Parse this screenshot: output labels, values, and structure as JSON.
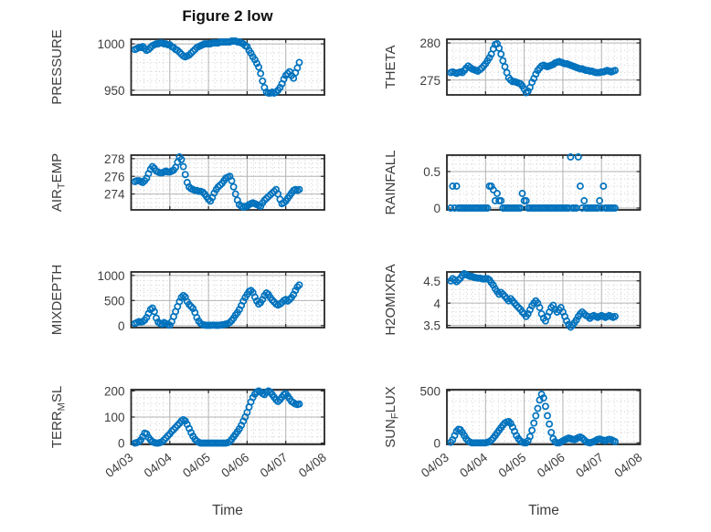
{
  "figure": {
    "title": "Figure 2 low",
    "xlabel": "Time",
    "background": "#ffffff",
    "marker_color": "#0072BD",
    "axis_color": "#262626",
    "text_color": "#3d3d3d",
    "grid_color": "#b3b3b3",
    "minor_grid_color": "#c9c9c9"
  },
  "x_axis": {
    "label": "Time",
    "ticks": [
      "04/03",
      "04/04",
      "04/05",
      "04/06",
      "04/07",
      "04/08"
    ],
    "range_days": [
      0,
      5
    ]
  },
  "chart_data": [
    {
      "name": "PRESSURE",
      "type": "scatter",
      "row": 0,
      "col": 0,
      "ylabel_parts": [
        {
          "text": "PRESSURE",
          "sub": false
        }
      ],
      "ylim": [
        945,
        1005
      ],
      "yticks": [
        {
          "v": 950,
          "label": "950"
        },
        {
          "v": 1000,
          "label": "1000"
        }
      ],
      "y_minor_step": 10,
      "x_start_day": 0.1,
      "x_step_day": 0.05,
      "values": [
        994,
        995,
        996,
        996,
        997,
        995,
        993,
        994,
        996,
        998,
        999,
        1000,
        1000,
        1001,
        1001,
        1000,
        1000,
        999,
        999,
        997,
        996,
        994,
        993,
        991,
        989,
        987,
        986,
        987,
        988,
        990,
        992,
        994,
        996,
        997,
        998,
        999,
        1000,
        1000,
        1000,
        1000,
        1001,
        1001,
        1001,
        1001,
        1002,
        1002,
        1002,
        1002,
        1002,
        1002,
        1003,
        1003,
        1003,
        1002,
        1002,
        1001,
        1000,
        998,
        997,
        993,
        990,
        986,
        983,
        979,
        975,
        968,
        960,
        953,
        948,
        947,
        947,
        948,
        947,
        948,
        950,
        953,
        957,
        962,
        966,
        968,
        970,
        966,
        963,
        969,
        974,
        980
      ]
    },
    {
      "name": "THETA",
      "type": "scatter",
      "row": 0,
      "col": 1,
      "ylabel_parts": [
        {
          "text": "THETA",
          "sub": false
        }
      ],
      "ylim": [
        273,
        280.5
      ],
      "yticks": [
        {
          "v": 275,
          "label": "275"
        },
        {
          "v": 280,
          "label": "280"
        }
      ],
      "y_minor_step": 1,
      "x_start_day": 0.1,
      "x_step_day": 0.05,
      "values": [
        276.0,
        276.1,
        276.0,
        275.9,
        276.0,
        276.1,
        276.0,
        276.3,
        276.6,
        276.9,
        276.7,
        276.5,
        276.4,
        276.3,
        276.2,
        276.4,
        276.6,
        276.9,
        277.2,
        277.6,
        278.0,
        278.5,
        279.2,
        279.8,
        279.9,
        279.3,
        278.5,
        277.6,
        276.8,
        276.0,
        275.3,
        275.0,
        274.8,
        274.8,
        274.7,
        274.6,
        274.5,
        274.2,
        273.8,
        273.3,
        273.5,
        274.0,
        274.7,
        275.2,
        275.8,
        276.3,
        276.6,
        276.9,
        277.0,
        276.9,
        276.8,
        276.9,
        277.0,
        277.1,
        277.3,
        277.4,
        277.5,
        277.4,
        277.3,
        277.2,
        277.2,
        277.1,
        277.0,
        276.9,
        276.8,
        276.7,
        276.6,
        276.5,
        276.5,
        276.4,
        276.3,
        276.3,
        276.2,
        276.2,
        276.1,
        276.0,
        276.0,
        276.0,
        276.1,
        276.1,
        276.2,
        276.3,
        276.2,
        276.1,
        276.2,
        276.3
      ]
    },
    {
      "name": "AIR_TEMP",
      "type": "scatter",
      "row": 1,
      "col": 0,
      "ylabel_parts": [
        {
          "text": "AIR",
          "sub": false
        },
        {
          "text": "T",
          "sub": true
        },
        {
          "text": "EMP",
          "sub": false
        }
      ],
      "ylim": [
        272.2,
        278.4
      ],
      "yticks": [
        {
          "v": 274,
          "label": "274"
        },
        {
          "v": 276,
          "label": "276"
        },
        {
          "v": 278,
          "label": "278"
        }
      ],
      "y_minor_step": 0.5,
      "x_start_day": 0.1,
      "x_step_day": 0.05,
      "values": [
        275.4,
        275.5,
        275.5,
        275.4,
        275.3,
        275.5,
        275.8,
        276.3,
        276.8,
        277.1,
        276.9,
        276.6,
        276.5,
        276.4,
        276.4,
        276.5,
        276.6,
        276.5,
        276.5,
        276.6,
        276.7,
        277.0,
        277.6,
        278.2,
        277.9,
        277.1,
        276.2,
        275.3,
        274.8,
        274.6,
        274.5,
        274.4,
        274.4,
        274.3,
        274.3,
        274.2,
        274.0,
        273.7,
        273.4,
        273.2,
        273.6,
        274.1,
        274.5,
        274.8,
        275.0,
        275.2,
        275.5,
        275.8,
        275.9,
        276.0,
        275.5,
        274.8,
        274.0,
        273.3,
        272.8,
        272.6,
        272.5,
        272.6,
        272.6,
        272.8,
        272.9,
        273.0,
        272.9,
        272.8,
        272.7,
        272.6,
        273.0,
        273.3,
        273.5,
        273.7,
        273.9,
        274.1,
        274.3,
        274.5,
        274.0,
        273.4,
        272.9,
        273.0,
        273.2,
        273.5,
        273.8,
        274.1,
        274.4,
        274.5,
        274.4,
        274.5
      ]
    },
    {
      "name": "RAINFALL",
      "type": "scatter",
      "row": 1,
      "col": 1,
      "ylabel_parts": [
        {
          "text": "RAINFALL",
          "sub": false
        }
      ],
      "ylim": [
        -0.025,
        0.725
      ],
      "yticks": [
        {
          "v": 0,
          "label": "0"
        },
        {
          "v": 0.5,
          "label": "0.5"
        }
      ],
      "y_minor_step": 0.1,
      "x_start_day": 0.1,
      "x_step_day": 0.05,
      "values": [
        0,
        0.3,
        0,
        0.3,
        0,
        0,
        0,
        0,
        0,
        0,
        0,
        0,
        0,
        0,
        0,
        0,
        0,
        0,
        0,
        0,
        0.3,
        0.3,
        0.25,
        0.1,
        0.2,
        0.1,
        0.1,
        0,
        0,
        0,
        0,
        0,
        0,
        0,
        0,
        0,
        0,
        0.2,
        0.1,
        0.1,
        0,
        0,
        0,
        0,
        0,
        0,
        0,
        0,
        0,
        0,
        0,
        0,
        0,
        0,
        0,
        0,
        0,
        0,
        0,
        0,
        0,
        0,
        0.7,
        0,
        0,
        0,
        0.7,
        0.3,
        0,
        0.1,
        0,
        0,
        0,
        0,
        0,
        0,
        0,
        0.1,
        0,
        0.3,
        0,
        0,
        0,
        0,
        0,
        0
      ]
    },
    {
      "name": "MIXDEPTH",
      "type": "scatter",
      "row": 2,
      "col": 0,
      "ylabel_parts": [
        {
          "text": "MIXDEPTH",
          "sub": false
        }
      ],
      "ylim": [
        -40,
        1070
      ],
      "yticks": [
        {
          "v": 0,
          "label": "0"
        },
        {
          "v": 500,
          "label": "500"
        },
        {
          "v": 1000,
          "label": "1000"
        }
      ],
      "y_minor_step": 100,
      "x_start_day": 0.1,
      "x_step_day": 0.05,
      "values": [
        40,
        60,
        80,
        70,
        80,
        110,
        160,
        240,
        320,
        350,
        280,
        150,
        70,
        40,
        30,
        60,
        40,
        20,
        10,
        80,
        180,
        280,
        380,
        480,
        560,
        600,
        570,
        480,
        420,
        380,
        340,
        260,
        160,
        90,
        40,
        20,
        10,
        5,
        5,
        5,
        10,
        10,
        5,
        5,
        10,
        15,
        20,
        30,
        40,
        60,
        100,
        150,
        210,
        260,
        320,
        400,
        490,
        560,
        620,
        680,
        700,
        660,
        570,
        490,
        430,
        460,
        520,
        600,
        650,
        620,
        560,
        510,
        470,
        430,
        410,
        430,
        460,
        500,
        520,
        490,
        520,
        560,
        620,
        700,
        770,
        810
      ]
    },
    {
      "name": "H2OMIXRA",
      "type": "scatter",
      "row": 2,
      "col": 1,
      "ylabel_parts": [
        {
          "text": "H2OMIXRA",
          "sub": false
        }
      ],
      "ylim": [
        3.45,
        4.7
      ],
      "yticks": [
        {
          "v": 3.5,
          "label": "3.5"
        },
        {
          "v": 4,
          "label": "4"
        },
        {
          "v": 4.5,
          "label": "4.5"
        }
      ],
      "y_minor_step": 0.1,
      "x_start_day": 0.1,
      "x_step_day": 0.05,
      "values": [
        4.5,
        4.55,
        4.52,
        4.48,
        4.52,
        4.56,
        4.62,
        4.66,
        4.64,
        4.62,
        4.6,
        4.6,
        4.58,
        4.57,
        4.56,
        4.56,
        4.55,
        4.54,
        4.55,
        4.55,
        4.52,
        4.46,
        4.4,
        4.32,
        4.26,
        4.2,
        4.24,
        4.2,
        4.15,
        4.1,
        4.05,
        4.1,
        4.05,
        4.0,
        3.95,
        3.9,
        3.86,
        3.8,
        3.76,
        3.7,
        3.76,
        3.85,
        3.94,
        4.0,
        4.05,
        4.0,
        3.9,
        3.76,
        3.66,
        3.6,
        3.7,
        3.8,
        3.9,
        3.95,
        3.86,
        3.8,
        3.85,
        3.9,
        3.8,
        3.7,
        3.6,
        3.52,
        3.46,
        3.5,
        3.56,
        3.62,
        3.7,
        3.76,
        3.8,
        3.76,
        3.72,
        3.7,
        3.66,
        3.7,
        3.72,
        3.7,
        3.68,
        3.7,
        3.72,
        3.7,
        3.68,
        3.7,
        3.72,
        3.7,
        3.68,
        3.7
      ]
    },
    {
      "name": "TERR_MSL",
      "type": "scatter",
      "row": 3,
      "col": 0,
      "ylabel_parts": [
        {
          "text": "TERR",
          "sub": false
        },
        {
          "text": "M",
          "sub": true
        },
        {
          "text": "SL",
          "sub": false
        }
      ],
      "ylim": [
        -5,
        205
      ],
      "yticks": [
        {
          "v": 0,
          "label": "0"
        },
        {
          "v": 100,
          "label": "100"
        },
        {
          "v": 200,
          "label": "200"
        }
      ],
      "y_minor_step": 25,
      "x_start_day": 0.1,
      "x_step_day": 0.05,
      "values": [
        0,
        2,
        5,
        12,
        25,
        38,
        35,
        22,
        12,
        5,
        2,
        0,
        0,
        2,
        5,
        12,
        20,
        28,
        35,
        45,
        52,
        60,
        68,
        76,
        85,
        90,
        85,
        72,
        56,
        40,
        26,
        15,
        8,
        3,
        0,
        0,
        0,
        0,
        0,
        0,
        0,
        0,
        0,
        0,
        0,
        0,
        0,
        0,
        2,
        6,
        14,
        24,
        34,
        44,
        55,
        68,
        84,
        100,
        118,
        138,
        158,
        175,
        188,
        196,
        200,
        196,
        190,
        186,
        194,
        200,
        196,
        186,
        176,
        166,
        160,
        166,
        176,
        186,
        190,
        180,
        170,
        160,
        155,
        150,
        148,
        150
      ]
    },
    {
      "name": "SUN_FLUX",
      "type": "scatter",
      "row": 3,
      "col": 1,
      "ylabel_parts": [
        {
          "text": "SUN",
          "sub": false
        },
        {
          "text": "F",
          "sub": true
        },
        {
          "text": "LUX",
          "sub": false
        }
      ],
      "ylim": [
        -15,
        510
      ],
      "yticks": [
        {
          "v": 0,
          "label": "0"
        },
        {
          "v": 500,
          "label": "500"
        }
      ],
      "y_minor_step": 100,
      "x_start_day": 0.1,
      "x_step_day": 0.05,
      "values": [
        5,
        30,
        70,
        110,
        130,
        125,
        100,
        70,
        40,
        18,
        6,
        0,
        0,
        0,
        0,
        0,
        0,
        0,
        0,
        5,
        12,
        25,
        45,
        70,
        95,
        120,
        145,
        170,
        190,
        200,
        205,
        185,
        150,
        110,
        70,
        40,
        18,
        6,
        0,
        0,
        20,
        60,
        120,
        190,
        260,
        330,
        410,
        465,
        430,
        350,
        260,
        180,
        100,
        40,
        10,
        0,
        0,
        8,
        18,
        28,
        38,
        45,
        40,
        34,
        30,
        40,
        50,
        55,
        45,
        28,
        12,
        4,
        0,
        5,
        12,
        22,
        32,
        36,
        30,
        24,
        20,
        28,
        34,
        30,
        20,
        12
      ]
    }
  ]
}
